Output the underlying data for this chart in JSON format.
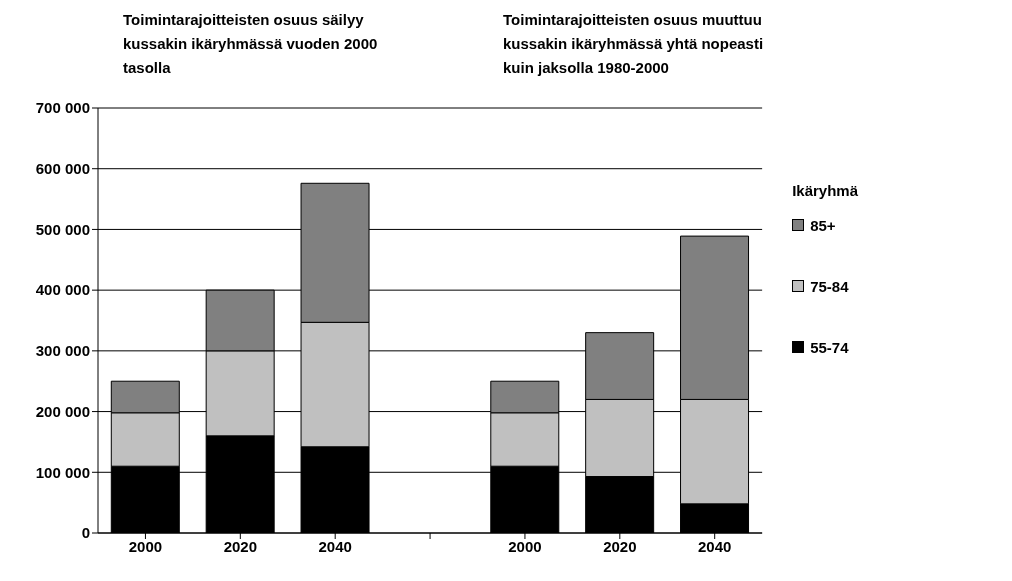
{
  "chart_data": {
    "type": "bar",
    "stacked": true,
    "annotations": [
      "Toimintarajoitteisten osuus säilyy kussakin ikäryhmässä vuoden 2000 tasolla",
      "Toimintarajoitteisten osuus muuttuu kussakin ikäryhmässä yhtä nopeasti kuin jaksolla 1980-2000"
    ],
    "categories": [
      "2000",
      "2020",
      "2040",
      null,
      "2000",
      "2020",
      "2040"
    ],
    "series": [
      {
        "name": "55-74",
        "color": "#000000",
        "values": [
          110000,
          160000,
          142000,
          null,
          110000,
          93000,
          48000
        ]
      },
      {
        "name": "75-84",
        "color": "#c0c0c0",
        "values": [
          88000,
          140000,
          205000,
          null,
          88000,
          127000,
          172000
        ]
      },
      {
        "name": "85+",
        "color": "#808080",
        "values": [
          52000,
          100000,
          229000,
          null,
          52000,
          110000,
          269000
        ]
      }
    ],
    "ylim": [
      0,
      700000
    ],
    "yticks": [
      0,
      100000,
      200000,
      300000,
      400000,
      500000,
      600000,
      700000
    ],
    "grid": "y",
    "legend": "right",
    "legend_title": "Ikäryhmä"
  }
}
